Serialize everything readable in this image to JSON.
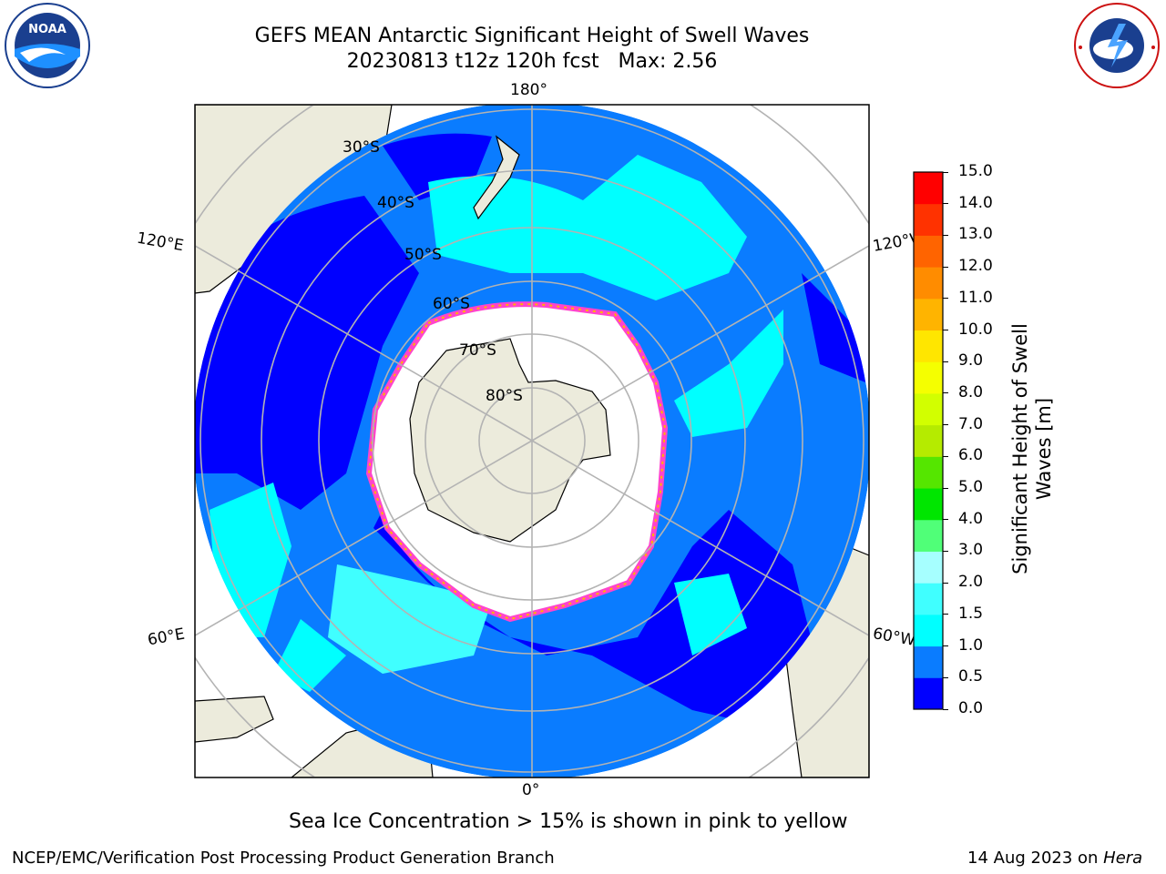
{
  "title": {
    "line1": "GEFS MEAN Antarctic Significant Height of Swell Waves",
    "line2": "20230813 t12z 120h fcst   Max: 2.56"
  },
  "map": {
    "projection": "south-polar-stereographic",
    "lon_labels": {
      "top": "180°",
      "bottom": "0°",
      "upper_left": "120°E",
      "upper_right": "120°W",
      "lower_left": "60°E",
      "lower_right": "60°W"
    },
    "lat_labels": [
      "30°S",
      "40°S",
      "50°S",
      "60°S",
      "70°S",
      "80°S"
    ]
  },
  "colorbar": {
    "label_line1": "Significant Height of Swell",
    "label_line2": "Waves [m]",
    "ticks": [
      "0.0",
      "0.5",
      "1.0",
      "1.5",
      "2.0",
      "3.0",
      "4.0",
      "5.0",
      "6.0",
      "7.0",
      "8.0",
      "9.0",
      "10.0",
      "11.0",
      "12.0",
      "13.0",
      "14.0",
      "15.0"
    ],
    "colors": [
      "#0000ff",
      "#0a7cff",
      "#00ffff",
      "#40ffff",
      "#a6ffff",
      "#50ff78",
      "#00e600",
      "#55e600",
      "#b5eb00",
      "#d2ff00",
      "#f5ff00",
      "#ffe600",
      "#ffb400",
      "#ff8c00",
      "#ff6400",
      "#ff3200",
      "#ff0000"
    ]
  },
  "annotation": "Sea Ice Concentration > 15% is shown in pink to yellow",
  "footer": {
    "left": "NCEP/EMC/Verification Post Processing Product Generation Branch",
    "right_prefix": "14 Aug 2023 on ",
    "right_host": "Hera"
  },
  "logos": {
    "left_text": "NOAA",
    "right_text": "NATIONAL WEATHER SERVICE"
  }
}
